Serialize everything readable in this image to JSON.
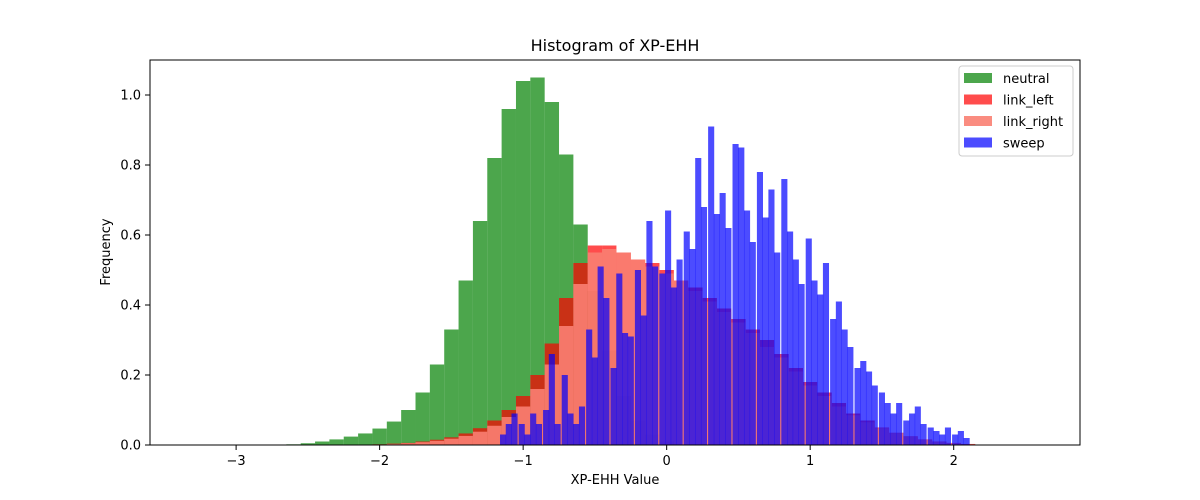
{
  "chart_data": {
    "type": "bar",
    "title": "Histogram of XP-EHH",
    "xlabel": "XP-EHH Value",
    "ylabel": "Frequency",
    "xlim": [
      -3.6,
      2.88
    ],
    "ylim": [
      0,
      1.1
    ],
    "xticks": [
      -3,
      -2,
      -1,
      0,
      1,
      2
    ],
    "xtick_labels": [
      "−3",
      "−2",
      "−1",
      "0",
      "1",
      "2"
    ],
    "yticks": [
      0.0,
      0.2,
      0.4,
      0.6,
      0.8,
      1.0
    ],
    "ytick_labels": [
      "0.0",
      "0.2",
      "0.4",
      "0.6",
      "0.8",
      "1.0"
    ],
    "legend_position": "top-right",
    "grid": false,
    "series": [
      {
        "name": "neutral",
        "color": "#008000",
        "alpha": 0.7,
        "x": [
          -2.6,
          -2.5,
          -2.4,
          -2.3,
          -2.2,
          -2.1,
          -2.0,
          -1.9,
          -1.8,
          -1.7,
          -1.6,
          -1.5,
          -1.4,
          -1.3,
          -1.2,
          -1.1,
          -1.0,
          -0.9,
          -0.8,
          -0.7,
          -0.6,
          -0.5,
          -0.4,
          -0.3,
          -0.2,
          -0.1,
          0.0,
          0.1
        ],
        "values": [
          0.002,
          0.005,
          0.01,
          0.016,
          0.024,
          0.033,
          0.047,
          0.067,
          0.1,
          0.15,
          0.23,
          0.33,
          0.47,
          0.64,
          0.82,
          0.96,
          1.04,
          1.05,
          0.98,
          0.83,
          0.63,
          0.44,
          0.27,
          0.14,
          0.07,
          0.03,
          0.01,
          0.0
        ],
        "bin_width": 0.1
      },
      {
        "name": "link_left",
        "color": "#ff0000",
        "alpha": 0.7,
        "x": [
          -2.0,
          -1.9,
          -1.8,
          -1.7,
          -1.6,
          -1.5,
          -1.4,
          -1.3,
          -1.2,
          -1.1,
          -1.0,
          -0.9,
          -0.8,
          -0.7,
          -0.6,
          -0.5,
          -0.4,
          -0.3,
          -0.2,
          -0.1,
          0.0,
          0.1,
          0.2,
          0.3,
          0.4,
          0.5,
          0.6,
          0.7,
          0.8,
          0.9,
          1.0,
          1.1,
          1.2,
          1.3,
          1.4,
          1.5,
          1.6,
          1.7,
          1.8,
          1.9,
          2.0,
          2.1,
          2.2
        ],
        "values": [
          0.002,
          0.004,
          0.006,
          0.01,
          0.015,
          0.022,
          0.033,
          0.048,
          0.07,
          0.1,
          0.14,
          0.2,
          0.29,
          0.42,
          0.52,
          0.57,
          0.57,
          0.55,
          0.53,
          0.52,
          0.5,
          0.47,
          0.45,
          0.42,
          0.39,
          0.36,
          0.33,
          0.3,
          0.26,
          0.22,
          0.18,
          0.15,
          0.12,
          0.09,
          0.07,
          0.05,
          0.035,
          0.025,
          0.016,
          0.01,
          0.006,
          0.003,
          0.001
        ],
        "bin_width": 0.1
      },
      {
        "name": "link_right",
        "color": "#fa8072",
        "alpha": 0.9,
        "x": [
          -1.9,
          -1.8,
          -1.7,
          -1.6,
          -1.5,
          -1.4,
          -1.3,
          -1.2,
          -1.1,
          -1.0,
          -0.9,
          -0.8,
          -0.7,
          -0.6,
          -0.5,
          -0.4,
          -0.3,
          -0.2,
          -0.1,
          0.0,
          0.1,
          0.2,
          0.3,
          0.4,
          0.5,
          0.6,
          0.7,
          0.8,
          0.9,
          1.0,
          1.1,
          1.2,
          1.3,
          1.4,
          1.5,
          1.6,
          1.7,
          1.8,
          1.9,
          2.0,
          2.1
        ],
        "values": [
          0.003,
          0.005,
          0.008,
          0.012,
          0.018,
          0.026,
          0.038,
          0.055,
          0.08,
          0.11,
          0.16,
          0.23,
          0.34,
          0.46,
          0.55,
          0.56,
          0.55,
          0.53,
          0.51,
          0.49,
          0.47,
          0.44,
          0.41,
          0.38,
          0.35,
          0.32,
          0.28,
          0.25,
          0.21,
          0.17,
          0.14,
          0.11,
          0.085,
          0.065,
          0.048,
          0.034,
          0.024,
          0.015,
          0.009,
          0.005,
          0.002
        ],
        "bin_width": 0.1
      },
      {
        "name": "sweep",
        "color": "#0000ff",
        "alpha": 0.7,
        "bin_width": 0.0425,
        "x": [
          -1.14,
          -1.1,
          -1.06,
          -1.01,
          -0.97,
          -0.93,
          -0.89,
          -0.84,
          -0.8,
          -0.76,
          -0.71,
          -0.67,
          -0.63,
          -0.59,
          -0.54,
          -0.5,
          -0.46,
          -0.42,
          -0.37,
          -0.33,
          -0.29,
          -0.25,
          -0.2,
          -0.16,
          -0.12,
          -0.08,
          -0.03,
          0.01,
          0.05,
          0.09,
          0.14,
          0.18,
          0.22,
          0.26,
          0.31,
          0.35,
          0.39,
          0.43,
          0.48,
          0.52,
          0.56,
          0.6,
          0.65,
          0.69,
          0.73,
          0.77,
          0.82,
          0.86,
          0.9,
          0.94,
          0.99,
          1.03,
          1.07,
          1.11,
          1.16,
          1.2,
          1.24,
          1.28,
          1.33,
          1.37,
          1.41,
          1.45,
          1.5,
          1.54,
          1.58,
          1.62,
          1.67,
          1.71,
          1.75,
          1.79,
          1.84,
          1.88,
          1.92,
          1.96,
          2.01,
          2.05,
          2.09
        ],
        "values": [
          0.03,
          0.06,
          0.09,
          0.06,
          0.03,
          0.09,
          0.06,
          0.1,
          0.26,
          0.06,
          0.2,
          0.09,
          0.06,
          0.11,
          0.33,
          0.25,
          0.51,
          0.42,
          0.22,
          0.49,
          0.32,
          0.31,
          0.5,
          0.37,
          0.64,
          0.51,
          0.49,
          0.67,
          0.45,
          0.53,
          0.61,
          0.56,
          0.82,
          0.68,
          0.91,
          0.66,
          0.72,
          0.62,
          0.86,
          0.85,
          0.67,
          0.58,
          0.78,
          0.65,
          0.73,
          0.55,
          0.76,
          0.61,
          0.53,
          0.46,
          0.59,
          0.47,
          0.43,
          0.52,
          0.36,
          0.41,
          0.33,
          0.28,
          0.22,
          0.24,
          0.21,
          0.17,
          0.15,
          0.12,
          0.09,
          0.12,
          0.07,
          0.09,
          0.11,
          0.06,
          0.05,
          0.04,
          0.03,
          0.05,
          0.03,
          0.04,
          0.02
        ]
      }
    ]
  }
}
